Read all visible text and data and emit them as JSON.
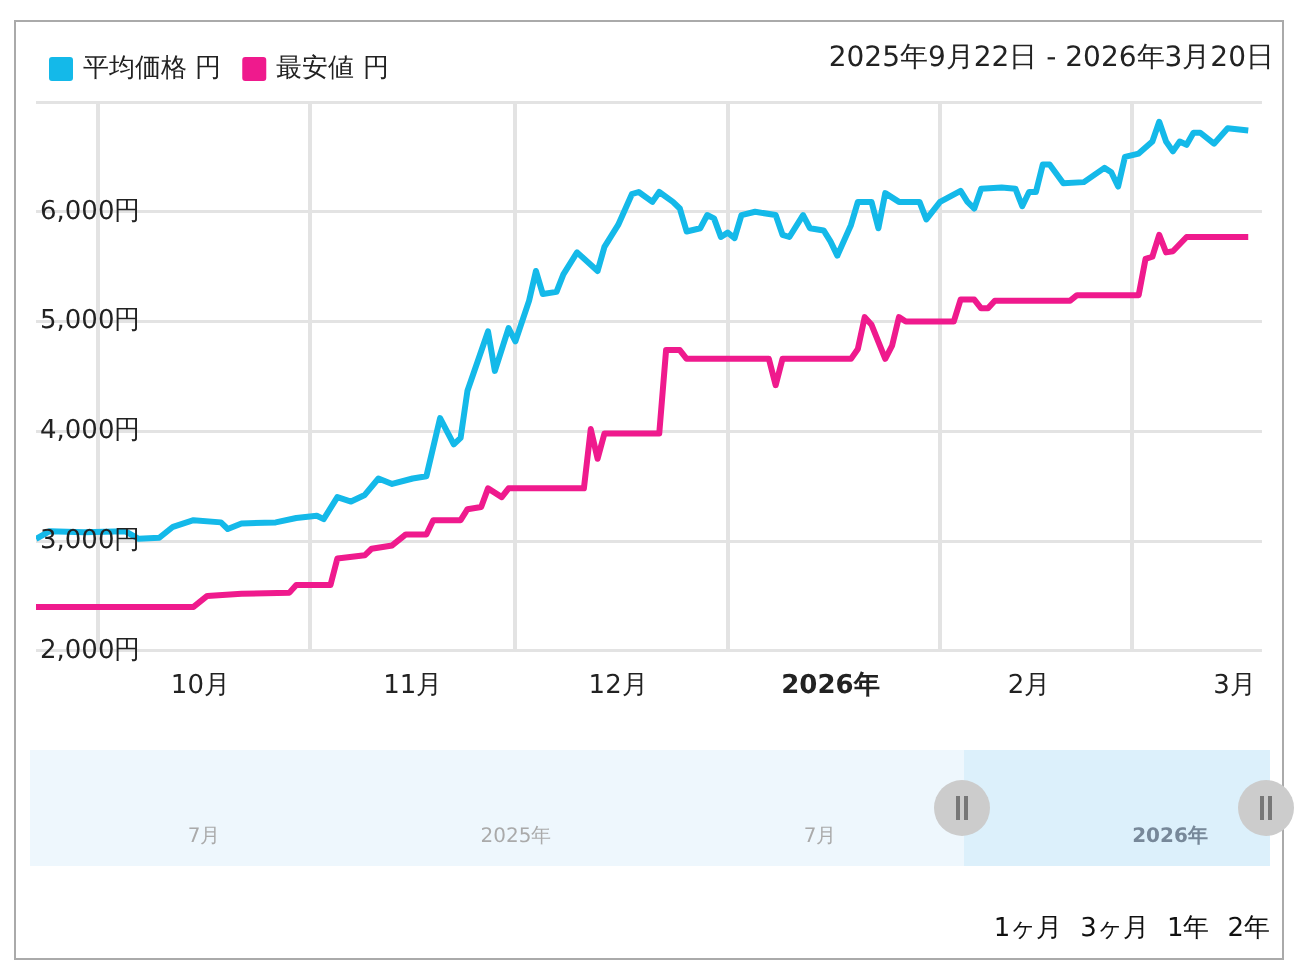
{
  "chart_data": {
    "type": "line",
    "subtitle": "2025年9月22日 - 2026年3月20日",
    "legend": "top left",
    "grid": true,
    "marker": "none",
    "line_style": "solid",
    "xlim": [
      "2025-09-22",
      "2026-03-20"
    ],
    "xticks": [
      {
        "value": "2025-10-01",
        "label": null
      },
      {
        "value": "2025-10-16",
        "label": "10月"
      },
      {
        "value": "2025-11-01",
        "label": null
      },
      {
        "value": "2025-11-16",
        "label": "11月"
      },
      {
        "value": "2025-12-01",
        "label": null
      },
      {
        "value": "2025-12-16",
        "label": "12月"
      },
      {
        "value": "2026-01-01",
        "label": null
      },
      {
        "value": "2026-01-16",
        "label": "2026年"
      },
      {
        "value": "2026-02-01",
        "label": null
      },
      {
        "value": "2026-02-14",
        "label": "2月"
      },
      {
        "value": "2026-03-01",
        "label": null
      },
      {
        "value": "2026-03-16",
        "label": "3月"
      }
    ],
    "ylim": [
      2000,
      7000
    ],
    "yticks": [
      {
        "value": 2000,
        "label": "2,000円"
      },
      {
        "value": 3000,
        "label": "3,000円"
      },
      {
        "value": 4000,
        "label": "4,000円"
      },
      {
        "value": 5000,
        "label": "5,000円"
      },
      {
        "value": 6000,
        "label": "6,000円"
      },
      {
        "value": 7000,
        "label": null
      }
    ],
    "annotations": [
      "7月",
      "2025年",
      "7月",
      "2026年",
      "1ヶ月",
      "3ヶ月",
      "1年",
      "2年"
    ],
    "series": [
      {
        "name": "平均価格 円",
        "color": "#14b9e9",
        "x": [
          "2025-09-22",
          "2025-09-24",
          "2025-09-29",
          "2025-10-05",
          "2025-10-07",
          "2025-10-10",
          "2025-10-12",
          "2025-10-15",
          "2025-10-19",
          "2025-10-20",
          "2025-10-22",
          "2025-10-27",
          "2025-10-30",
          "2025-11-02",
          "2025-11-03",
          "2025-11-05",
          "2025-11-07",
          "2025-11-09",
          "2025-11-11",
          "2025-11-13",
          "2025-11-16",
          "2025-11-18",
          "2025-11-20",
          "2025-11-22",
          "2025-11-23",
          "2025-11-24",
          "2025-11-27",
          "2025-11-28",
          "2025-11-30",
          "2025-12-01",
          "2025-12-03",
          "2025-12-04",
          "2025-12-05",
          "2025-12-07",
          "2025-12-08",
          "2025-12-10",
          "2025-12-13",
          "2025-12-14",
          "2025-12-16",
          "2025-12-18",
          "2025-12-19",
          "2025-12-21",
          "2025-12-22",
          "2025-12-24",
          "2025-12-25",
          "2025-12-26",
          "2025-12-28",
          "2025-12-29",
          "2025-12-30",
          "2025-12-31",
          "2026-01-01",
          "2026-01-02",
          "2026-01-03",
          "2026-01-05",
          "2026-01-08",
          "2026-01-09",
          "2026-01-10",
          "2026-01-12",
          "2026-01-13",
          "2026-01-15",
          "2026-01-16",
          "2026-01-17",
          "2026-01-19",
          "2026-01-20",
          "2026-01-22",
          "2026-01-23",
          "2026-01-24",
          "2026-01-26",
          "2026-01-29",
          "2026-01-30",
          "2026-02-01",
          "2026-02-04",
          "2026-02-05",
          "2026-02-06",
          "2026-02-07",
          "2026-02-10",
          "2026-02-12",
          "2026-02-13",
          "2026-02-14",
          "2026-02-15",
          "2026-02-16",
          "2026-02-17",
          "2026-02-19",
          "2026-02-22",
          "2026-02-25",
          "2026-02-26",
          "2026-02-27",
          "2026-02-28",
          "2026-03-02",
          "2026-03-04",
          "2026-03-05",
          "2026-03-06",
          "2026-03-07",
          "2026-03-08",
          "2026-03-09",
          "2026-03-10",
          "2026-03-11",
          "2026-03-13",
          "2026-03-15",
          "2026-03-18"
        ],
        "values": [
          3020,
          3090,
          3080,
          3090,
          3020,
          3030,
          3130,
          3190,
          3170,
          3110,
          3160,
          3170,
          3210,
          3230,
          3200,
          3400,
          3360,
          3420,
          3570,
          3520,
          3570,
          3590,
          4120,
          3880,
          3940,
          4370,
          4910,
          4550,
          4940,
          4820,
          5190,
          5460,
          5250,
          5270,
          5430,
          5630,
          5460,
          5680,
          5880,
          6160,
          6180,
          6090,
          6180,
          6090,
          6030,
          5820,
          5850,
          5970,
          5940,
          5770,
          5810,
          5760,
          5970,
          6000,
          5970,
          5790,
          5770,
          5970,
          5850,
          5830,
          5730,
          5600,
          5880,
          6090,
          6090,
          5850,
          6170,
          6090,
          6090,
          5930,
          6090,
          6190,
          6090,
          6030,
          6210,
          6220,
          6210,
          6050,
          6180,
          6180,
          6430,
          6430,
          6260,
          6270,
          6400,
          6360,
          6230,
          6500,
          6530,
          6640,
          6820,
          6640,
          6550,
          6640,
          6610,
          6720,
          6720,
          6620,
          6760,
          6740
        ]
      },
      {
        "name": "最安値 円",
        "color": "#ef1a8d",
        "x": [
          "2025-09-22",
          "2025-10-15",
          "2025-10-17",
          "2025-10-22",
          "2025-10-29",
          "2025-10-30",
          "2025-11-04",
          "2025-11-05",
          "2025-11-09",
          "2025-11-10",
          "2025-11-13",
          "2025-11-15",
          "2025-11-18",
          "2025-11-19",
          "2025-11-23",
          "2025-11-24",
          "2025-11-26",
          "2025-11-27",
          "2025-11-29",
          "2025-11-30",
          "2025-12-11",
          "2025-12-12",
          "2025-12-13",
          "2025-12-14",
          "2025-12-22",
          "2025-12-23",
          "2025-12-25",
          "2025-12-26",
          "2026-01-07",
          "2026-01-08",
          "2026-01-09",
          "2026-01-19",
          "2026-01-20",
          "2026-01-21",
          "2026-01-22",
          "2026-01-24",
          "2026-01-25",
          "2026-01-26",
          "2026-01-27",
          "2026-02-03",
          "2026-02-04",
          "2026-02-06",
          "2026-02-07",
          "2026-02-08",
          "2026-02-09",
          "2026-02-20",
          "2026-02-21",
          "2026-03-02",
          "2026-03-03",
          "2026-03-04",
          "2026-03-05",
          "2026-03-06",
          "2026-03-07",
          "2026-03-09",
          "2026-03-18"
        ],
        "values": [
          2400,
          2400,
          2500,
          2520,
          2530,
          2600,
          2600,
          2840,
          2870,
          2930,
          2960,
          3060,
          3060,
          3190,
          3190,
          3290,
          3310,
          3480,
          3400,
          3480,
          3480,
          4020,
          3750,
          3980,
          3980,
          4740,
          4740,
          4660,
          4660,
          4420,
          4660,
          4660,
          4750,
          5040,
          4970,
          4660,
          4780,
          5040,
          5000,
          5000,
          5200,
          5200,
          5120,
          5120,
          5190,
          5190,
          5240,
          5240,
          5570,
          5590,
          5790,
          5630,
          5640,
          5770,
          5770
        ]
      }
    ]
  }
}
